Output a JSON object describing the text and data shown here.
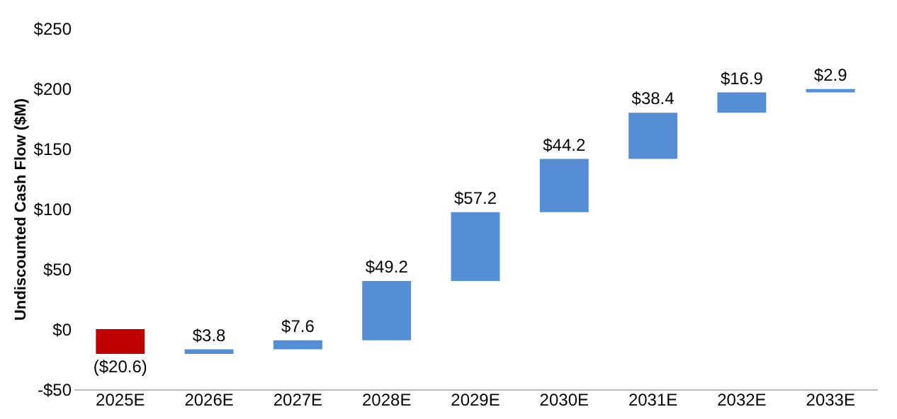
{
  "chart_data": {
    "type": "bar",
    "ylabel": "Undiscounted Cash Flow ($M)",
    "categories": [
      "2025E",
      "2026E",
      "2027E",
      "2028E",
      "2029E",
      "2030E",
      "2031E",
      "2032E",
      "2033E"
    ],
    "values": [
      -20.6,
      3.8,
      7.6,
      49.2,
      57.2,
      44.2,
      38.4,
      16.9,
      2.9
    ],
    "base": [
      0,
      -20.6,
      -16.8,
      -9.2,
      40.0,
      97.2,
      141.4,
      179.8,
      196.7
    ],
    "colors": [
      "#c00000",
      "#558ed5",
      "#558ed5",
      "#558ed5",
      "#558ed5",
      "#558ed5",
      "#558ed5",
      "#558ed5",
      "#558ed5"
    ],
    "value_labels": [
      "($20.6)",
      "$3.8",
      "$7.6",
      "$49.2",
      "$57.2",
      "$44.2",
      "$38.4",
      "$16.9",
      "$2.9"
    ],
    "ylim": [
      -50,
      250
    ],
    "yticks": [
      {
        "value": -50,
        "label": "-$50"
      },
      {
        "value": 0,
        "label": "$0"
      },
      {
        "value": 50,
        "label": "$50"
      },
      {
        "value": 100,
        "label": "$100"
      },
      {
        "value": 150,
        "label": "$150"
      },
      {
        "value": 200,
        "label": "$200"
      },
      {
        "value": 250,
        "label": "$250"
      }
    ],
    "grid": false
  }
}
